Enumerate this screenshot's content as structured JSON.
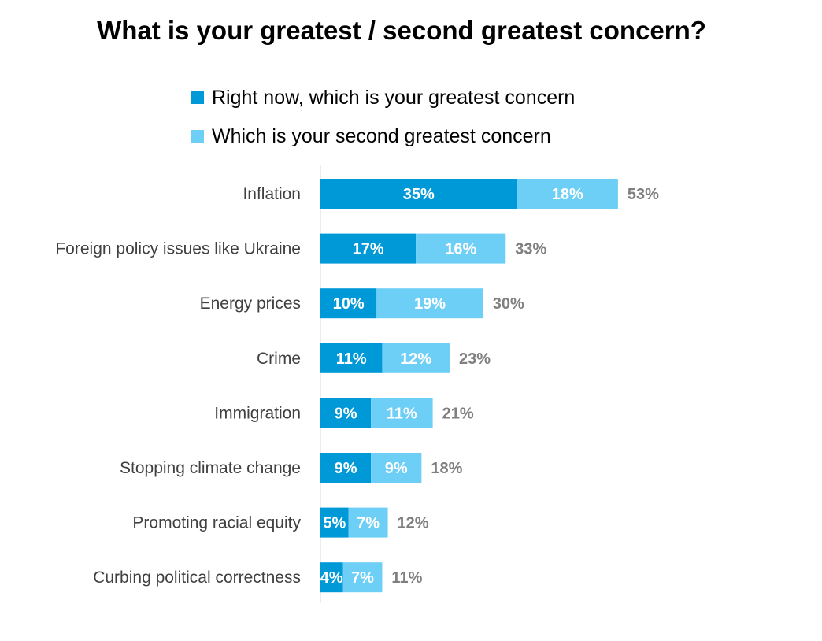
{
  "chart_data": {
    "type": "bar",
    "orientation": "horizontal",
    "stacked": true,
    "title": "What is your greatest / second greatest concern?",
    "categories": [
      "Inflation",
      "Foreign policy issues like Ukraine",
      "Energy prices",
      "Crime",
      "Immigration",
      "Stopping climate change",
      "Promoting racial equity",
      "Curbing political correctness"
    ],
    "series": [
      {
        "name": "Right now, which is your greatest concern",
        "color": "#0099d8",
        "values": [
          35,
          17,
          10,
          11,
          9,
          9,
          5,
          4
        ]
      },
      {
        "name": "Which is your second greatest concern",
        "color": "#6ecff6",
        "values": [
          18,
          16,
          19,
          12,
          11,
          9,
          7,
          7
        ]
      }
    ],
    "totals": [
      53,
      33,
      30,
      23,
      21,
      18,
      12,
      11
    ],
    "value_suffix": "%",
    "legend_position": "top",
    "grid": false
  }
}
